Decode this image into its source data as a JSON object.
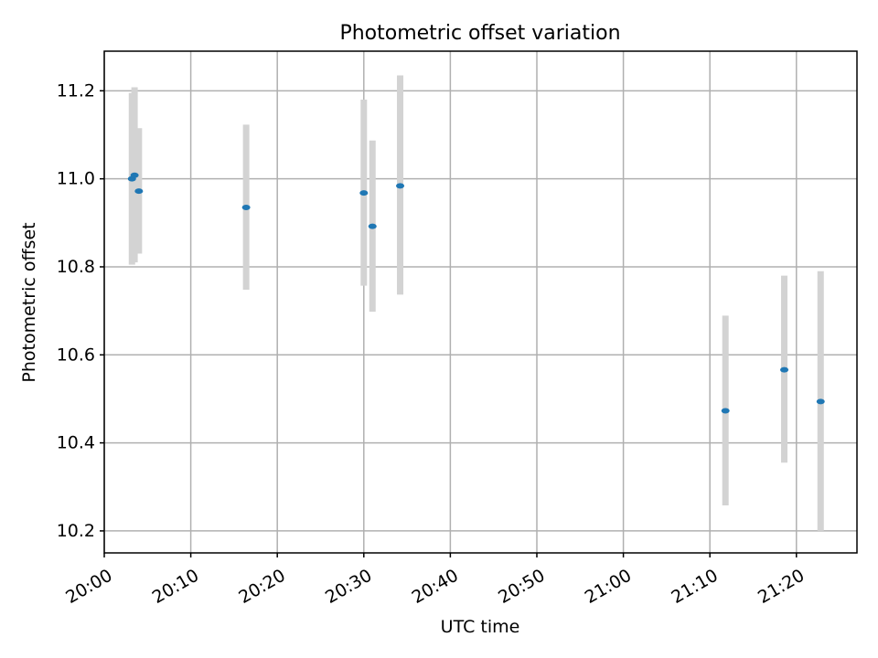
{
  "chart_data": {
    "type": "scatter",
    "title": "Photometric offset variation",
    "xlabel": "UTC time",
    "ylabel": "Photometric offset",
    "xlim": [
      "20:00",
      "21:27"
    ],
    "ylim": [
      10.15,
      11.29
    ],
    "x_ticks": [
      "20:00",
      "20:10",
      "20:20",
      "20:30",
      "20:40",
      "20:50",
      "21:00",
      "21:10",
      "21:20"
    ],
    "y_ticks": [
      "10.2",
      "10.4",
      "10.6",
      "10.8",
      "11.0",
      "11.2"
    ],
    "grid": true,
    "colors": {
      "points": "#1f77b4",
      "error_bars": "#d3d3d3",
      "grid": "#b0b0b0"
    },
    "points": [
      {
        "x": "20:03:12",
        "y": 11.0,
        "yerr_low": 10.805,
        "yerr_high": 11.195
      },
      {
        "x": "20:03:30",
        "y": 11.008,
        "yerr_low": 10.81,
        "yerr_high": 11.208
      },
      {
        "x": "20:04:00",
        "y": 10.972,
        "yerr_low": 10.83,
        "yerr_high": 11.115
      },
      {
        "x": "20:16:24",
        "y": 10.935,
        "yerr_low": 10.748,
        "yerr_high": 11.123
      },
      {
        "x": "20:30:00",
        "y": 10.968,
        "yerr_low": 10.757,
        "yerr_high": 11.18
      },
      {
        "x": "20:31:00",
        "y": 10.892,
        "yerr_low": 10.698,
        "yerr_high": 11.087
      },
      {
        "x": "20:34:12",
        "y": 10.984,
        "yerr_low": 10.737,
        "yerr_high": 11.235
      },
      {
        "x": "21:11:48",
        "y": 10.473,
        "yerr_low": 10.258,
        "yerr_high": 10.689
      },
      {
        "x": "21:18:36",
        "y": 10.566,
        "yerr_low": 10.355,
        "yerr_high": 10.78
      },
      {
        "x": "21:22:48",
        "y": 10.494,
        "yerr_low": 10.2,
        "yerr_high": 10.79
      }
    ]
  }
}
